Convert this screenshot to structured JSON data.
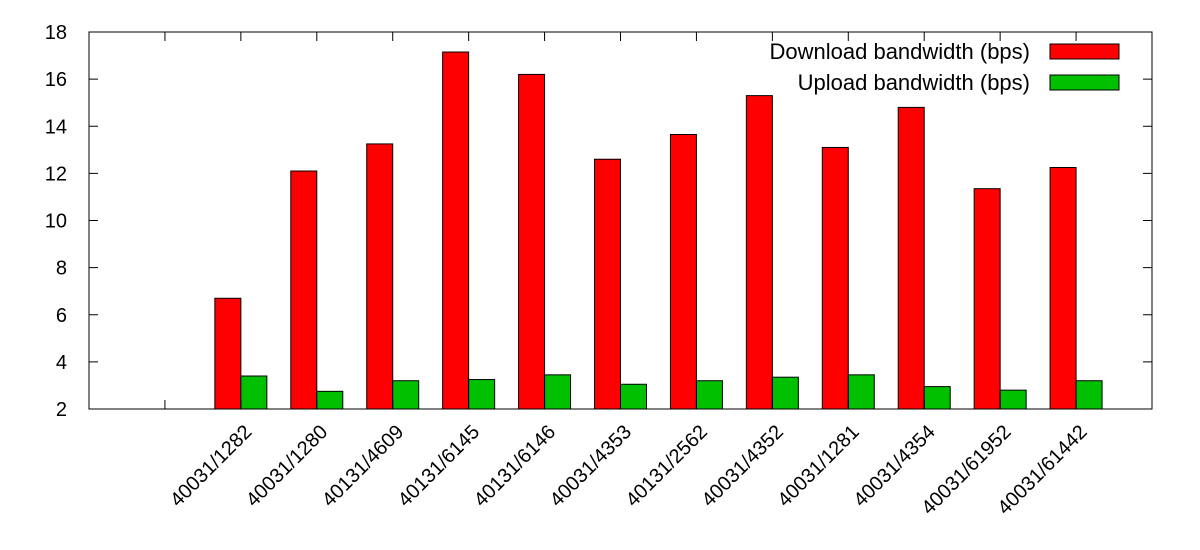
{
  "chart_data": {
    "type": "bar",
    "title": "",
    "xlabel": "",
    "ylabel": "",
    "ylim": [
      2,
      18
    ],
    "yticks": [
      2,
      4,
      6,
      8,
      10,
      12,
      14,
      16,
      18
    ],
    "grid": false,
    "legend_position": "top-right",
    "categories": [
      "",
      "40031/1282",
      "40031/1280",
      "40131/4609",
      "40131/6145",
      "40131/6146",
      "40031/4353",
      "40131/2562",
      "40031/4352",
      "40031/1281",
      "40031/4354",
      "40031/61952",
      "40031/61442"
    ],
    "series": [
      {
        "name": "Download bandwidth (bps)",
        "color": "#ff0000",
        "values": [
          null,
          6.7,
          12.1,
          13.25,
          17.15,
          16.2,
          12.6,
          13.65,
          15.3,
          13.1,
          14.8,
          11.35,
          12.25
        ]
      },
      {
        "name": "Upload bandwidth (bps)",
        "color": "#00c000",
        "values": [
          null,
          3.4,
          2.75,
          3.2,
          3.25,
          3.45,
          3.05,
          3.2,
          3.35,
          3.45,
          2.95,
          2.8,
          3.2
        ]
      }
    ]
  }
}
